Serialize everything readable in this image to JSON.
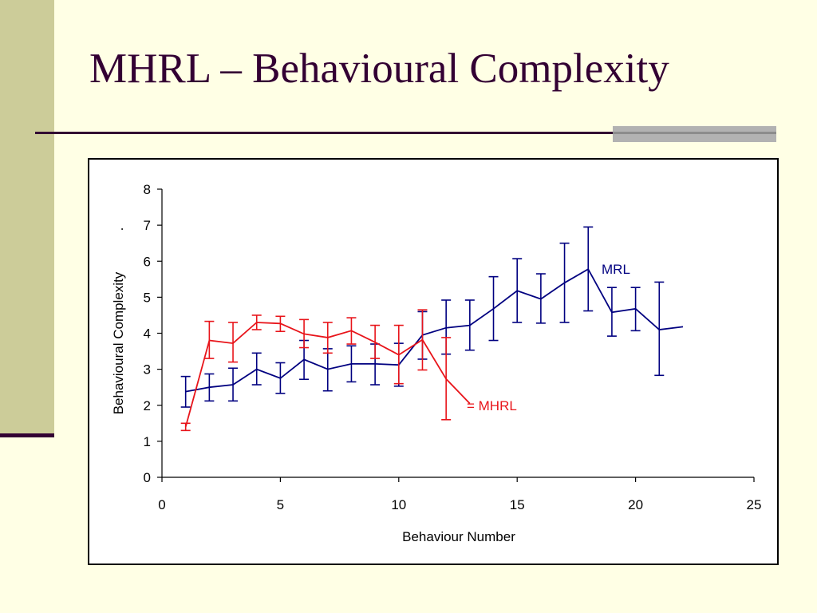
{
  "slide": {
    "title": "MHRL – Behavioural Complexity",
    "colors": {
      "background": "#FFFFE5",
      "accent_band": "#CCCC99",
      "title": "#330033"
    }
  },
  "chart_data": {
    "type": "line",
    "xlabel": "Behaviour Number",
    "ylabel": "Behavioural Complexity",
    "ylabel_suffix": ".",
    "xlim": [
      0,
      25
    ],
    "ylim": [
      0,
      8
    ],
    "xticks": [
      0,
      5,
      10,
      15,
      20,
      25
    ],
    "yticks": [
      0,
      1,
      2,
      3,
      4,
      5,
      6,
      7,
      8
    ],
    "grid": false,
    "series": [
      {
        "name": "MRL",
        "label": "MRL",
        "color": "#000080",
        "x": [
          1,
          2,
          3,
          4,
          5,
          6,
          7,
          8,
          9,
          10,
          11,
          12,
          13,
          14,
          15,
          16,
          17,
          18,
          19,
          20,
          21,
          22
        ],
        "y": [
          2.38,
          2.5,
          2.57,
          3.0,
          2.75,
          3.27,
          3.0,
          3.15,
          3.15,
          3.12,
          3.95,
          4.15,
          4.22,
          4.68,
          5.18,
          4.95,
          5.4,
          5.78,
          4.58,
          4.68,
          4.1,
          4.18
        ],
        "err_low": [
          1.95,
          2.12,
          2.12,
          2.57,
          2.33,
          2.72,
          2.4,
          2.65,
          2.57,
          2.53,
          3.28,
          3.42,
          3.53,
          3.8,
          4.3,
          4.28,
          4.3,
          4.62,
          3.92,
          4.07,
          2.83,
          null
        ],
        "err_high": [
          2.8,
          2.87,
          3.03,
          3.45,
          3.18,
          3.8,
          3.57,
          3.65,
          3.7,
          3.72,
          4.6,
          4.92,
          4.92,
          5.57,
          6.07,
          5.65,
          6.5,
          6.95,
          5.27,
          5.27,
          5.42,
          null
        ]
      },
      {
        "name": "MHRL",
        "label": "= MHRL",
        "color": "#E8141A",
        "x": [
          1,
          2,
          3,
          4,
          5,
          6,
          7,
          8,
          9,
          10,
          11,
          12,
          13
        ],
        "y": [
          1.4,
          3.8,
          3.72,
          4.3,
          4.27,
          3.98,
          3.88,
          4.07,
          3.75,
          3.4,
          3.82,
          2.73,
          2.05
        ],
        "err_low": [
          1.3,
          3.3,
          3.2,
          4.1,
          4.05,
          3.6,
          3.45,
          3.7,
          3.3,
          2.6,
          2.98,
          1.6,
          null
        ],
        "err_high": [
          1.5,
          4.33,
          4.3,
          4.5,
          4.47,
          4.38,
          4.3,
          4.43,
          4.22,
          4.22,
          4.65,
          3.88,
          null
        ]
      }
    ]
  }
}
